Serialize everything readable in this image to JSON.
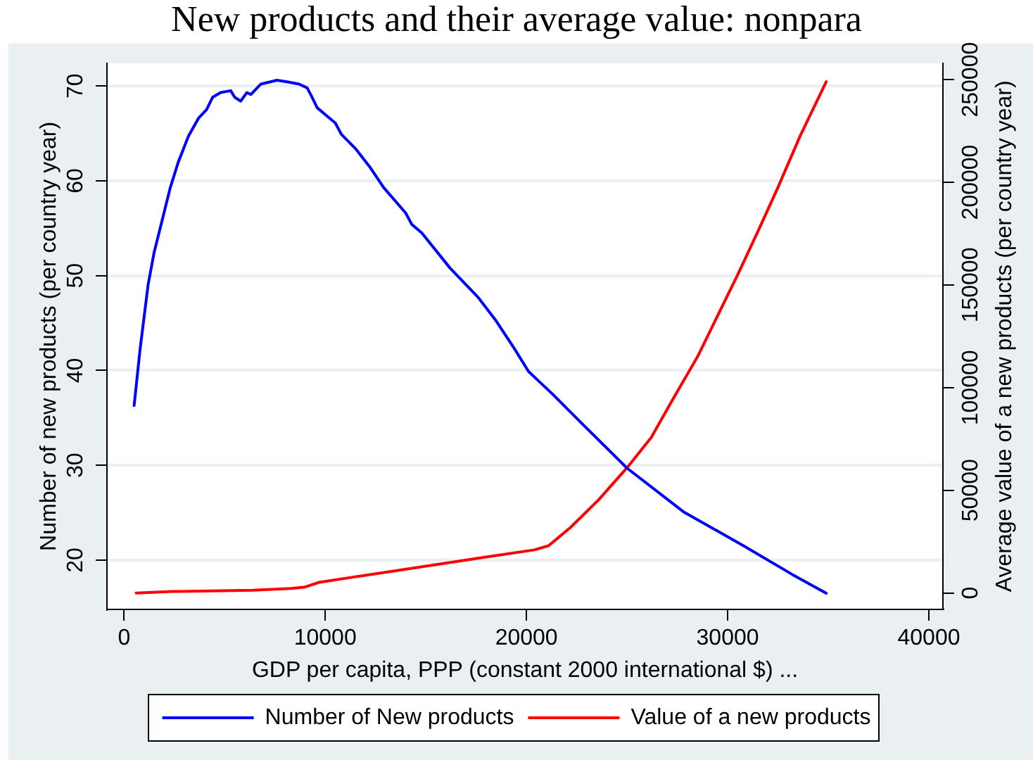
{
  "chart_data": {
    "type": "line",
    "title": "New products and their average value: nonpara",
    "xlabel": "GDP per capita, PPP (constant 2000 international $) ...",
    "ylabel": "Number of new products (per country year)",
    "y2label": "Average value of a new products (per country year)",
    "series": [
      {
        "name": "Number of New products",
        "color": "#0000ff",
        "x": [
          500,
          800,
          1200,
          1500,
          1900,
          2300,
          2700,
          3200,
          3700,
          4100,
          4400,
          4800,
          5300,
          5500,
          5800,
          6100,
          6300,
          6800,
          7600,
          8200,
          8700,
          9100,
          9300,
          9600,
          10100,
          10500,
          10800,
          11500,
          12200,
          12900,
          14000,
          14300,
          14800,
          16200,
          17600,
          18500,
          19400,
          20100,
          21300,
          22900,
          25000,
          27800,
          30800,
          33200,
          34900
        ],
        "values": [
          36.3,
          42.3,
          49.1,
          52.5,
          55.9,
          59.3,
          62.0,
          64.7,
          66.6,
          67.5,
          68.8,
          69.3,
          69.5,
          68.8,
          68.4,
          69.3,
          69.1,
          70.2,
          70.6,
          70.4,
          70.2,
          69.8,
          69.0,
          67.7,
          66.8,
          66.1,
          64.9,
          63.4,
          61.5,
          59.3,
          56.6,
          55.4,
          54.5,
          50.8,
          47.7,
          45.2,
          42.3,
          39.9,
          37.5,
          34.1,
          29.7,
          25.1,
          21.5,
          18.5,
          16.5
        ]
      },
      {
        "name": "Value of a new products",
        "color": "#ff0000",
        "axis": "y2",
        "x": [
          600,
          2400,
          6400,
          8300,
          9000,
          9700,
          11500,
          13400,
          15700,
          18000,
          20400,
          21100,
          22200,
          23600,
          25000,
          26200,
          27300,
          28500,
          29400,
          30500,
          31500,
          32500,
          33600,
          34900
        ],
        "values": [
          0,
          700,
          1300,
          2200,
          2900,
          5200,
          7900,
          10700,
          14100,
          17500,
          21000,
          23000,
          32000,
          45500,
          61000,
          75700,
          94700,
          115000,
          133000,
          155000,
          176000,
          197500,
          222500,
          249000
        ]
      }
    ],
    "xlim": [
      -850,
      40700
    ],
    "xticks": [
      0,
      10000,
      20000,
      30000,
      40000
    ],
    "ylim": [
      14.8,
      72.4
    ],
    "yticks": [
      20,
      30,
      40,
      50,
      60,
      70
    ],
    "y2lim": [
      -8000,
      258000
    ],
    "y2ticks": [
      0,
      50000,
      100000,
      150000,
      200000,
      250000
    ],
    "grid": "y",
    "legend": "bottom"
  }
}
